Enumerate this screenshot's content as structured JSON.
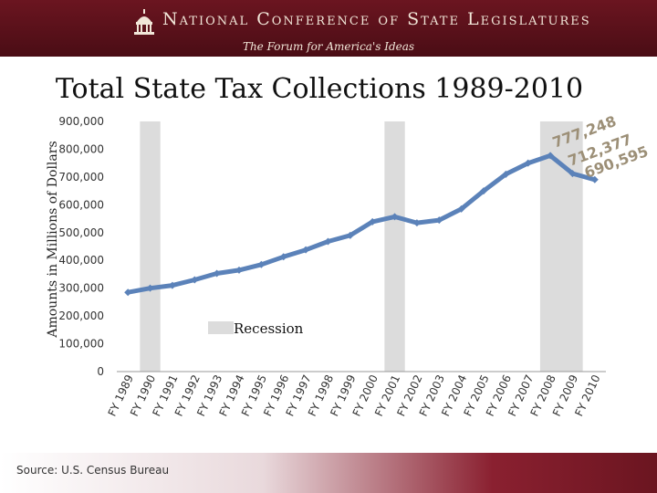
{
  "header": {
    "org_name": "National Conference of State Legislatures",
    "tagline": "The Forum for America's Ideas"
  },
  "source": "Source: U.S. Census Bureau",
  "colors": {
    "line": "#5b82b9",
    "recession": "#dcdcdc",
    "annotation": "#9c8f77",
    "banner": "#6b1520"
  },
  "chart_data": {
    "type": "line",
    "title": "Total State Tax Collections 1989-2010",
    "xlabel": "",
    "ylabel": "Amounts in Millions of Dollars",
    "ylim": [
      0,
      900000
    ],
    "yticks": [
      "0",
      "100,000",
      "200,000",
      "300,000",
      "400,000",
      "500,000",
      "600,000",
      "700,000",
      "800,000",
      "900,000"
    ],
    "categories": [
      "FY 1989",
      "FY 1990",
      "FY 1991",
      "FY 1992",
      "FY 1993",
      "FY 1994",
      "FY 1995",
      "FY 1996",
      "FY 1997",
      "FY 1998",
      "FY 1999",
      "FY 2000",
      "FY 2001",
      "FY 2002",
      "FY 2003",
      "FY 2004",
      "FY 2005",
      "FY 2006",
      "FY 2007",
      "FY 2008",
      "FY 2009",
      "FY 2010"
    ],
    "series": [
      {
        "name": "Total State Tax Collections",
        "values": [
          285000,
          300000,
          310000,
          330000,
          353000,
          365000,
          385000,
          413000,
          438000,
          468000,
          490000,
          539000,
          557000,
          535000,
          545000,
          585000,
          650000,
          710000,
          750000,
          777248,
          712377,
          690595
        ]
      }
    ],
    "recession_periods": [
      [
        1,
        1
      ],
      [
        12,
        12
      ],
      [
        19,
        20
      ]
    ],
    "legend": {
      "label": "Recession",
      "position": "bottom-center"
    },
    "annotations": [
      "777,248",
      "712,377",
      "690,595"
    ]
  }
}
